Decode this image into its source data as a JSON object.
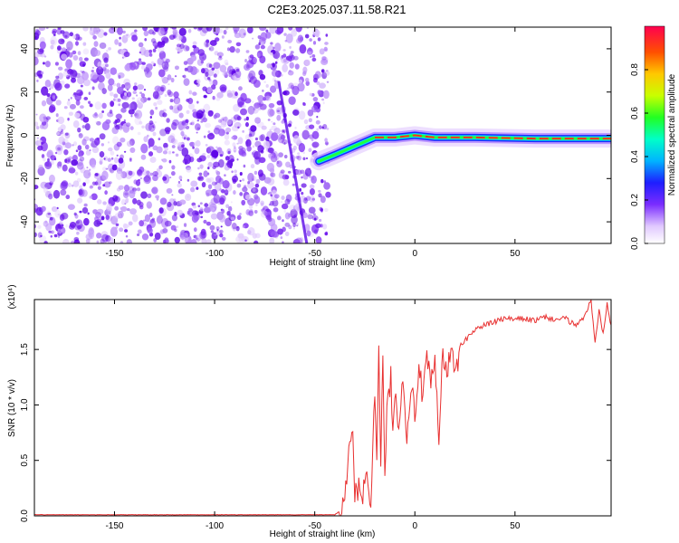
{
  "title": "C2E3.2025.037.11.58.R21",
  "chart_data": [
    {
      "type": "heatmap",
      "xlabel": "Height of straight line (km)",
      "ylabel": "Frequency (Hz)",
      "xlim": [
        -190,
        98
      ],
      "ylim": [
        -50,
        50
      ],
      "xticks": [
        -150,
        -100,
        -50,
        0,
        50
      ],
      "yticks": [
        -40,
        -20,
        0,
        20,
        40
      ],
      "colorbar": {
        "label": "Normalized spectral amplitude",
        "range": [
          0,
          1
        ],
        "ticks": [
          0.0,
          0.2,
          0.4,
          0.6,
          0.8
        ]
      },
      "ridge": [
        [
          -48,
          -12
        ],
        [
          -40,
          -9
        ],
        [
          -30,
          -5
        ],
        [
          -20,
          -1
        ],
        [
          -10,
          -1
        ],
        [
          0,
          0
        ],
        [
          10,
          -1
        ],
        [
          30,
          -1
        ],
        [
          60,
          -1.5
        ],
        [
          98,
          -1.5
        ]
      ],
      "noise_region_x": [
        -190,
        -46
      ]
    },
    {
      "type": "line",
      "xlabel": "Height of straight line (km)",
      "ylabel": "SNR (10 * v/v)",
      "y_multiplier": "(x10⁴)",
      "xlim": [
        -190,
        98
      ],
      "ylim": [
        0,
        1.95
      ],
      "xticks": [
        -150,
        -100,
        -50,
        0,
        50
      ],
      "yticks": [
        0.0,
        0.5,
        1.0,
        1.5
      ],
      "series": [
        {
          "color": "#e83030",
          "x": [
            -190,
            -100,
            -40,
            -37,
            -35,
            -33,
            -31,
            -30,
            -28,
            -26,
            -24,
            -22,
            -20,
            -19,
            -18,
            -17,
            -16,
            -15,
            -14,
            -13,
            -12,
            -11,
            -10,
            -8,
            -6,
            -4,
            -2,
            0,
            2,
            4,
            6,
            8,
            10,
            12,
            14,
            16,
            18,
            20,
            22,
            24,
            26,
            28,
            30,
            35,
            40,
            45,
            50,
            55,
            60,
            65,
            70,
            75,
            80,
            85,
            88,
            90,
            92,
            94,
            96,
            98
          ],
          "y": [
            0.01,
            0.01,
            0.01,
            0.05,
            0.2,
            0.55,
            0.75,
            0.2,
            0.25,
            0.18,
            0.4,
            0.15,
            1.1,
            0.6,
            1.55,
            0.45,
            1.4,
            0.3,
            0.95,
            1.05,
            1.3,
            0.7,
            1.1,
            0.85,
            1.25,
            0.75,
            1.2,
            0.9,
            1.35,
            1.05,
            1.4,
            1.2,
            1.35,
            0.7,
            1.5,
            1.25,
            1.5,
            1.3,
            1.45,
            1.55,
            1.6,
            1.65,
            1.68,
            1.72,
            1.75,
            1.78,
            1.77,
            1.78,
            1.76,
            1.79,
            1.77,
            1.78,
            1.72,
            1.8,
            1.95,
            1.55,
            1.85,
            1.65,
            1.92,
            1.72
          ]
        }
      ]
    }
  ]
}
